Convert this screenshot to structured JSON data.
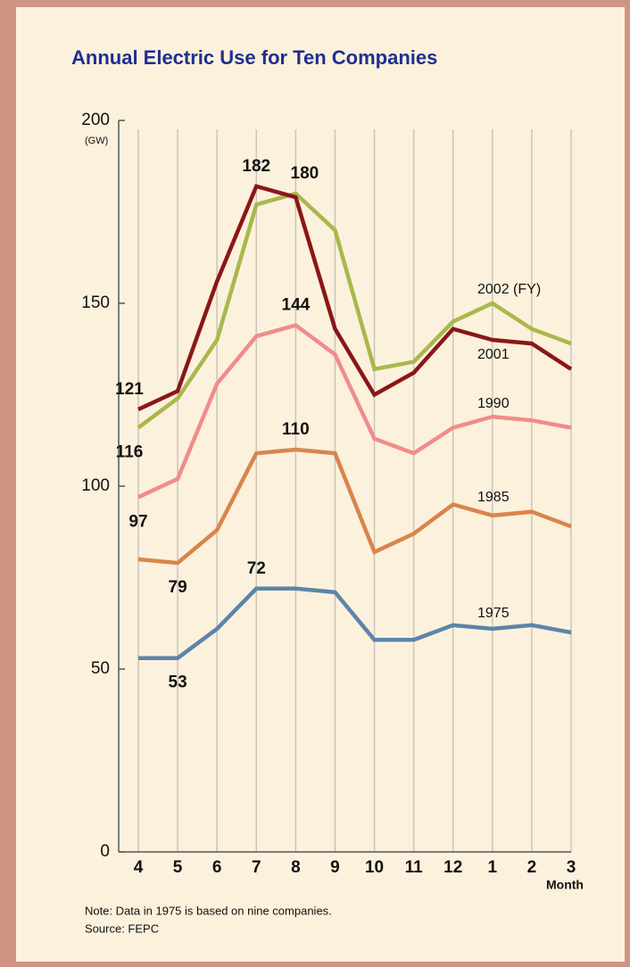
{
  "chart_data": {
    "type": "line",
    "title": "Annual Electric Use for Ten Companies",
    "y_label": "(GW)",
    "x_label": "Month",
    "note": "Note: Data in 1975 is based on nine companies.",
    "source": "Source: FEPC",
    "categories": [
      "4",
      "5",
      "6",
      "7",
      "8",
      "9",
      "10",
      "11",
      "12",
      "1",
      "2",
      "3"
    ],
    "ylim": [
      0,
      200
    ],
    "yticks": [
      0,
      50,
      100,
      150,
      200
    ],
    "grid": true,
    "series": [
      {
        "name": "2002 (FY)",
        "color": "#a9b84c",
        "values": [
          116,
          124,
          140,
          177,
          180,
          170,
          132,
          134,
          145,
          150,
          143,
          139
        ],
        "value_labels": [
          116,
          null,
          null,
          null,
          180,
          null,
          null,
          null,
          null,
          null,
          null,
          null
        ]
      },
      {
        "name": "2001",
        "color": "#8a1618",
        "values": [
          121,
          126,
          156,
          182,
          179,
          143,
          125,
          131,
          143,
          140,
          139,
          132
        ],
        "value_labels": [
          121,
          null,
          null,
          182,
          null,
          null,
          null,
          null,
          null,
          null,
          null,
          null
        ]
      },
      {
        "name": "1990",
        "color": "#f08c8c",
        "values": [
          97,
          102,
          128,
          141,
          144,
          136,
          113,
          109,
          116,
          119,
          118,
          116
        ],
        "value_labels": [
          97,
          null,
          null,
          null,
          144,
          null,
          null,
          null,
          null,
          null,
          null,
          null
        ]
      },
      {
        "name": "1985",
        "color": "#d8854c",
        "values": [
          80,
          79,
          88,
          109,
          110,
          109,
          82,
          87,
          95,
          92,
          93,
          89
        ],
        "value_labels": [
          null,
          79,
          null,
          null,
          110,
          null,
          null,
          null,
          null,
          null,
          null,
          null
        ]
      },
      {
        "name": "1975",
        "color": "#5b85a9",
        "values": [
          53,
          53,
          61,
          72,
          72,
          71,
          58,
          58,
          62,
          61,
          62,
          60
        ],
        "value_labels": [
          null,
          53,
          null,
          72,
          null,
          null,
          null,
          null,
          null,
          null,
          null,
          null
        ]
      }
    ]
  }
}
